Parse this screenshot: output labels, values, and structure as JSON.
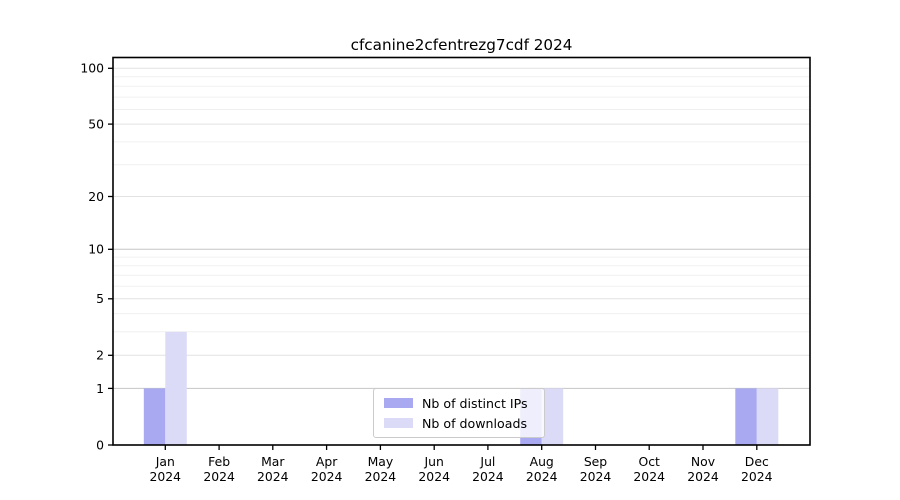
{
  "title": "cfcanine2cfentrezg7cdf 2024",
  "colors": {
    "background": "#ffffff",
    "axis_spine": "#000000",
    "grid_major": "#c6c6c6",
    "grid_labeled": "#e2e2e2",
    "grid_minor": "#f0f0f0",
    "legend_border": "#cbcbcb",
    "legend_background": "rgba(255,255,255,0.8)",
    "series_ips": "#a9a9f1",
    "series_downloads": "#dbdbf8"
  },
  "chart_data": {
    "type": "bar",
    "title": "cfcanine2cfentrezg7cdf 2024",
    "xlabel": "",
    "ylabel": "",
    "yscale": "log10(1+v) symlog-like, 0 at baseline",
    "ylim": [
      0,
      115
    ],
    "yticks": [
      0,
      1,
      2,
      5,
      10,
      20,
      50,
      100
    ],
    "grid": "on, horizontal major and minor",
    "categories": [
      "Jan",
      "Feb",
      "Mar",
      "Apr",
      "May",
      "Jun",
      "Jul",
      "Aug",
      "Sep",
      "Oct",
      "Nov",
      "Dec"
    ],
    "category_year": "2024",
    "series": [
      {
        "name": "Nb of distinct IPs",
        "color": "#a9a9f1",
        "values": [
          1,
          0,
          0,
          0,
          0,
          0,
          0,
          1,
          0,
          0,
          0,
          1
        ]
      },
      {
        "name": "Nb of downloads",
        "color": "#dbdbf8",
        "values": [
          3,
          0,
          0,
          0,
          0,
          0,
          0,
          1,
          0,
          0,
          0,
          1
        ]
      }
    ],
    "legend": {
      "position": "inside bottom-center",
      "labels": [
        "Nb of distinct IPs",
        "Nb of downloads"
      ]
    }
  }
}
